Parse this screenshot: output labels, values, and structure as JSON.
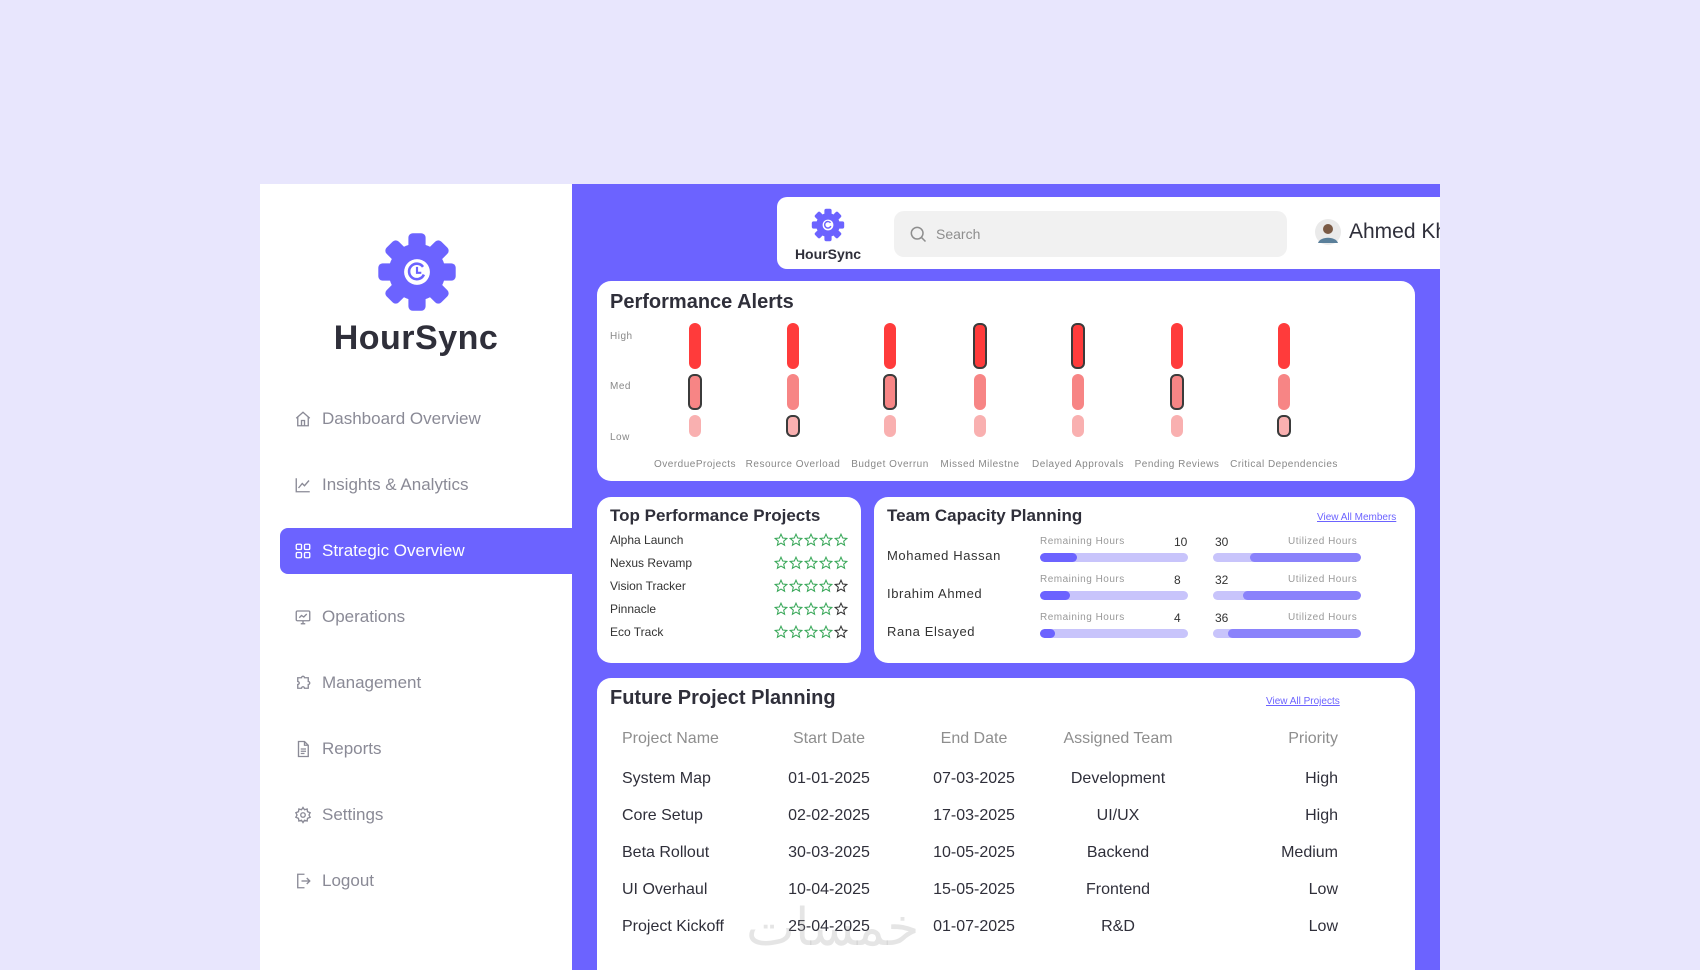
{
  "brand": {
    "name": "HourSync"
  },
  "sidebar": {
    "items": [
      {
        "label": "Dashboard Overview",
        "icon": "home-icon"
      },
      {
        "label": "Insights & Analytics",
        "icon": "line-chart-icon"
      },
      {
        "label": "Strategic Overview",
        "icon": "grid-icon",
        "active": true
      },
      {
        "label": "Operations",
        "icon": "monitor-icon"
      },
      {
        "label": "Management",
        "icon": "puzzle-icon"
      },
      {
        "label": "Reports",
        "icon": "document-icon"
      },
      {
        "label": "Settings",
        "icon": "gear-icon"
      },
      {
        "label": "Logout",
        "icon": "logout-icon"
      }
    ]
  },
  "topbar": {
    "brand": "HourSync",
    "search_placeholder": "Search",
    "user_name": "Ahmed Khaled"
  },
  "alerts": {
    "title": "Performance Alerts",
    "levels": [
      "High",
      "Med",
      "Low"
    ],
    "items": [
      {
        "name": "OverdueProjects",
        "level": "Med"
      },
      {
        "name": "Resource Overload",
        "level": "Low"
      },
      {
        "name": "Budget Overrun",
        "level": "Med"
      },
      {
        "name": "Missed Milestne",
        "level": "High"
      },
      {
        "name": "Delayed Approvals",
        "level": "High"
      },
      {
        "name": "Pending Reviews",
        "level": "Med"
      },
      {
        "name": "Critical Dependencies",
        "level": "Low"
      }
    ]
  },
  "top_projects": {
    "title": "Top Performance Projects",
    "items": [
      {
        "name": "Alpha Launch",
        "rating": 5
      },
      {
        "name": "Nexus Revamp",
        "rating": 5
      },
      {
        "name": "Vision Tracker",
        "rating": 4
      },
      {
        "name": "Pinnacle",
        "rating": 4
      },
      {
        "name": "Eco Track",
        "rating": 4
      }
    ]
  },
  "team": {
    "title": "Team Capacity Planning",
    "view_all": "View All Members",
    "remaining_label": "Remaining Hours",
    "utilized_label": "Utilized Hours",
    "members": [
      {
        "name": "Mohamed Hassan",
        "remaining": "10",
        "utilized": "30",
        "remaining_fraction": 0.25,
        "utilized_fraction": 0.75
      },
      {
        "name": "Ibrahim Ahmed",
        "remaining": "8",
        "utilized": "32",
        "remaining_fraction": 0.2,
        "utilized_fraction": 0.8
      },
      {
        "name": "Rana Elsayed",
        "remaining": "4",
        "utilized": "36",
        "remaining_fraction": 0.1,
        "utilized_fraction": 0.9
      }
    ]
  },
  "future": {
    "title": "Future Project Planning",
    "view_all": "View All Projects",
    "columns": [
      "Project Name",
      "Start Date",
      "End Date",
      "Assigned Team",
      "Priority"
    ],
    "rows": [
      [
        "System Map",
        "01-01-2025",
        "07-03-2025",
        "Development",
        "High"
      ],
      [
        "Core Setup",
        "02-02-2025",
        "17-03-2025",
        "UI/UX",
        "High"
      ],
      [
        "Beta Rollout",
        "30-03-2025",
        "10-05-2025",
        "Backend",
        "Medium"
      ],
      [
        "UI Overhaul",
        "10-04-2025",
        "15-05-2025",
        "Frontend",
        "Low"
      ],
      [
        "Project Kickoff",
        "25-04-2025",
        "01-07-2025",
        "R&D",
        "Low"
      ]
    ]
  },
  "watermark": "خمسات",
  "colors": {
    "accent": "#6c63ff",
    "background": "#e8e6fd",
    "alert_high": "#ff3b3b",
    "alert_med": "#f78585",
    "alert_low": "#f9b0b0",
    "star": "#3aa85a"
  }
}
